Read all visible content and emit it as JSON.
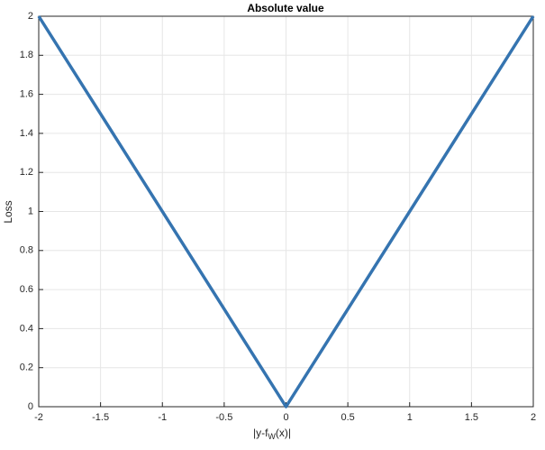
{
  "chart_data": {
    "type": "line",
    "title": "Absolute value",
    "x_label": [
      "|y-f",
      "W",
      "(x)|"
    ],
    "y_label": "Loss",
    "x": [
      -2,
      0,
      2
    ],
    "values": [
      2,
      0,
      2
    ],
    "color": "#3574b0",
    "xlim": [
      -2,
      2
    ],
    "xticks": [
      -2,
      -1.5,
      -1,
      -0.5,
      0,
      0.5,
      1,
      1.5,
      2
    ],
    "ylim": [
      0,
      2
    ],
    "yticks": [
      0,
      0.2,
      0.4,
      0.6,
      0.8,
      1,
      1.2,
      1.4,
      1.6,
      1.8,
      2
    ],
    "grid": true
  }
}
